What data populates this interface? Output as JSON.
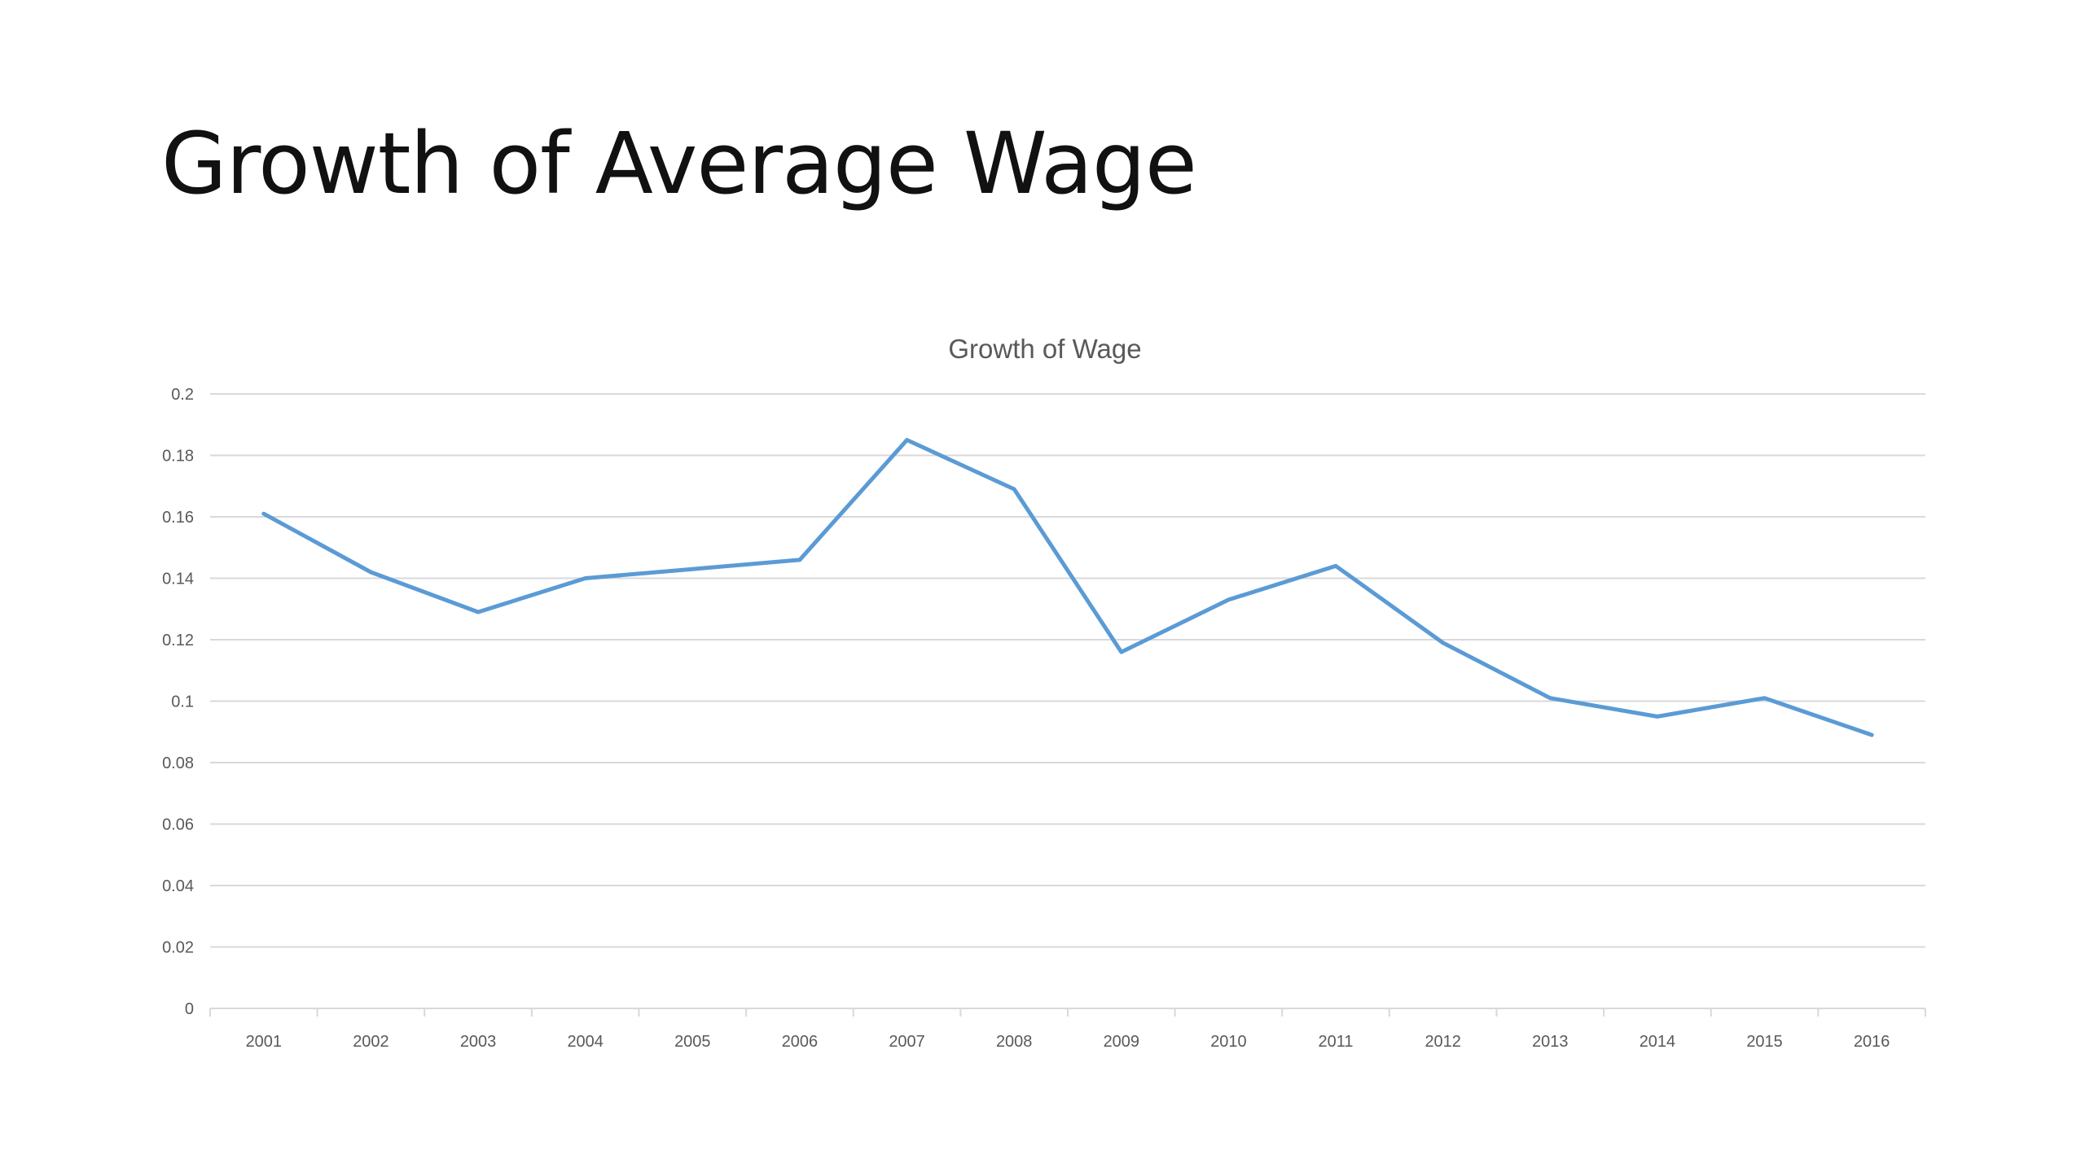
{
  "slide": {
    "title": "Growth of Average Wage"
  },
  "chart_data": {
    "type": "line",
    "title": "Growth of Wage",
    "xlabel": "",
    "ylabel": "",
    "ylim": [
      0,
      0.2
    ],
    "yticks": [
      "0",
      "0.02",
      "0.04",
      "0.06",
      "0.08",
      "0.1",
      "0.12",
      "0.14",
      "0.16",
      "0.18",
      "0.2"
    ],
    "grid": true,
    "legend": "none",
    "categories": [
      "2001",
      "2002",
      "2003",
      "2004",
      "2005",
      "2006",
      "2007",
      "2008",
      "2009",
      "2010",
      "2011",
      "2012",
      "2013",
      "2014",
      "2015",
      "2016"
    ],
    "series": [
      {
        "color": "#5b9bd5",
        "values": [
          0.161,
          0.142,
          0.129,
          0.14,
          0.143,
          0.146,
          0.185,
          0.169,
          0.116,
          0.133,
          0.144,
          0.119,
          0.101,
          0.095,
          0.101,
          0.089
        ]
      }
    ]
  }
}
